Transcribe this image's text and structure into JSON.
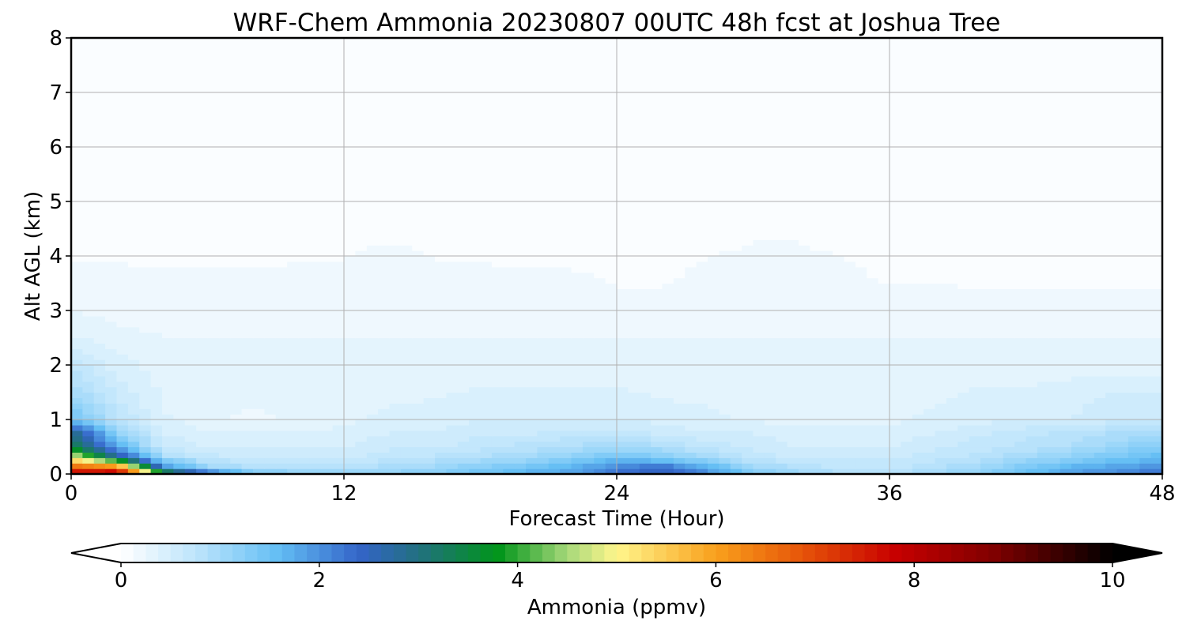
{
  "chart_data": {
    "type": "heatmap",
    "title": "WRF-Chem Ammonia  20230807 00UTC 48h fcst at Joshua Tree",
    "xlabel": "Forecast Time (Hour)",
    "ylabel": "Alt AGL (km)",
    "xlim": [
      0,
      48
    ],
    "ylim": [
      0,
      8
    ],
    "xticks": [
      "0",
      "12",
      "24",
      "36",
      "48"
    ],
    "yticks": [
      "0",
      "1",
      "2",
      "3",
      "4",
      "5",
      "6",
      "7",
      "8"
    ],
    "grid": true,
    "colorbar": {
      "label": "Ammonia  (ppmv)",
      "range": [
        0,
        10
      ],
      "ticks": [
        "0",
        "2",
        "4",
        "6",
        "8",
        "10"
      ],
      "extend": "both",
      "orientation": "horizontal",
      "placement": "bottom"
    },
    "hours": [
      0,
      2,
      4,
      6,
      8,
      10,
      12,
      14,
      16,
      18,
      20,
      22,
      24,
      26,
      28,
      30,
      32,
      34,
      36,
      38,
      40,
      42,
      44,
      46,
      48
    ],
    "levels_km": [
      0,
      0.15,
      0.3,
      0.5,
      0.75,
      1.0,
      1.5,
      2.0,
      2.5,
      3.0,
      3.5,
      4.0,
      4.5,
      5.0,
      6.0,
      8.0
    ],
    "values_ppmv": [
      [
        8.0,
        8.5,
        4.0,
        2.5,
        1.5,
        1.2,
        1.2,
        1.2,
        1.3,
        1.5,
        1.7,
        1.9,
        2.4,
        2.6,
        2.1,
        1.4,
        1.1,
        0.9,
        0.9,
        1.0,
        1.2,
        1.6,
        1.9,
        2.1,
        2.4
      ],
      [
        6.5,
        6.0,
        2.0,
        1.0,
        0.8,
        0.8,
        0.8,
        0.9,
        1.0,
        1.2,
        1.4,
        1.6,
        2.0,
        2.2,
        1.6,
        1.0,
        0.8,
        0.7,
        0.7,
        0.8,
        1.0,
        1.3,
        1.6,
        1.8,
        2.0
      ],
      [
        5.0,
        3.0,
        1.0,
        0.7,
        0.6,
        0.6,
        0.6,
        0.7,
        0.8,
        0.9,
        1.0,
        1.2,
        1.5,
        1.3,
        1.0,
        0.7,
        0.6,
        0.6,
        0.6,
        0.7,
        0.8,
        1.0,
        1.2,
        1.4,
        1.6
      ],
      [
        3.5,
        1.8,
        0.6,
        0.5,
        0.5,
        0.5,
        0.5,
        0.6,
        0.6,
        0.7,
        0.8,
        0.9,
        1.0,
        0.9,
        0.7,
        0.6,
        0.5,
        0.5,
        0.5,
        0.6,
        0.7,
        0.8,
        0.9,
        1.1,
        1.3
      ],
      [
        3.0,
        1.2,
        0.5,
        0.4,
        0.4,
        0.4,
        0.4,
        0.5,
        0.5,
        0.6,
        0.6,
        0.7,
        0.7,
        0.6,
        0.5,
        0.5,
        0.4,
        0.4,
        0.4,
        0.5,
        0.6,
        0.7,
        0.8,
        0.9,
        1.0
      ],
      [
        1.5,
        0.8,
        0.4,
        0.3,
        0.2,
        0.3,
        0.35,
        0.4,
        0.45,
        0.5,
        0.5,
        0.5,
        0.5,
        0.45,
        0.4,
        0.35,
        0.35,
        0.35,
        0.35,
        0.4,
        0.45,
        0.5,
        0.5,
        0.6,
        0.6
      ],
      [
        1.0,
        0.6,
        0.35,
        0.3,
        0.3,
        0.3,
        0.35,
        0.35,
        0.35,
        0.4,
        0.4,
        0.4,
        0.4,
        0.35,
        0.35,
        0.3,
        0.3,
        0.3,
        0.35,
        0.35,
        0.4,
        0.4,
        0.45,
        0.5,
        0.5
      ],
      [
        0.7,
        0.45,
        0.3,
        0.3,
        0.3,
        0.3,
        0.3,
        0.3,
        0.3,
        0.3,
        0.3,
        0.3,
        0.3,
        0.3,
        0.3,
        0.3,
        0.3,
        0.3,
        0.3,
        0.3,
        0.3,
        0.3,
        0.3,
        0.3,
        0.3
      ],
      [
        0.4,
        0.3,
        0.25,
        0.25,
        0.25,
        0.25,
        0.25,
        0.25,
        0.25,
        0.25,
        0.25,
        0.25,
        0.25,
        0.25,
        0.25,
        0.25,
        0.25,
        0.25,
        0.25,
        0.25,
        0.25,
        0.25,
        0.25,
        0.25,
        0.25
      ],
      [
        0.25,
        0.2,
        0.2,
        0.2,
        0.2,
        0.2,
        0.2,
        0.2,
        0.2,
        0.2,
        0.2,
        0.2,
        0.15,
        0.15,
        0.2,
        0.2,
        0.2,
        0.2,
        0.2,
        0.2,
        0.15,
        0.15,
        0.15,
        0.15,
        0.15
      ],
      [
        0.15,
        0.15,
        0.15,
        0.15,
        0.15,
        0.15,
        0.15,
        0.15,
        0.15,
        0.15,
        0.15,
        0.15,
        0.12,
        0.12,
        0.15,
        0.15,
        0.15,
        0.15,
        0.12,
        0.12,
        0.12,
        0.12,
        0.12,
        0.12,
        0.12
      ],
      [
        0.12,
        0.12,
        0.1,
        0.1,
        0.1,
        0.12,
        0.12,
        0.15,
        0.12,
        0.12,
        0.1,
        0.1,
        0.1,
        0.1,
        0.12,
        0.15,
        0.15,
        0.12,
        0.1,
        0.1,
        0.1,
        0.1,
        0.1,
        0.1,
        0.1
      ],
      [
        0.08,
        0.08,
        0.08,
        0.08,
        0.08,
        0.08,
        0.1,
        0.1,
        0.1,
        0.08,
        0.08,
        0.08,
        0.08,
        0.08,
        0.08,
        0.1,
        0.1,
        0.08,
        0.08,
        0.07,
        0.07,
        0.07,
        0.07,
        0.07,
        0.07
      ],
      [
        0.06,
        0.06,
        0.06,
        0.06,
        0.06,
        0.06,
        0.06,
        0.06,
        0.06,
        0.06,
        0.06,
        0.06,
        0.06,
        0.06,
        0.06,
        0.07,
        0.07,
        0.06,
        0.05,
        0.05,
        0.05,
        0.05,
        0.05,
        0.05,
        0.05
      ],
      [
        0.04,
        0.04,
        0.04,
        0.04,
        0.04,
        0.04,
        0.04,
        0.04,
        0.04,
        0.04,
        0.04,
        0.04,
        0.04,
        0.04,
        0.04,
        0.04,
        0.04,
        0.04,
        0.04,
        0.04,
        0.04,
        0.04,
        0.04,
        0.04,
        0.04
      ],
      [
        0.03,
        0.03,
        0.03,
        0.03,
        0.03,
        0.03,
        0.03,
        0.03,
        0.03,
        0.03,
        0.03,
        0.03,
        0.03,
        0.03,
        0.03,
        0.03,
        0.03,
        0.03,
        0.03,
        0.03,
        0.03,
        0.03,
        0.03,
        0.03,
        0.03
      ]
    ]
  },
  "colors": {
    "colormap_stops": [
      [
        0.0,
        "#ffffff"
      ],
      [
        0.08,
        "#b9e3fb"
      ],
      [
        0.16,
        "#62bdf4"
      ],
      [
        0.24,
        "#3464c8"
      ],
      [
        0.3,
        "#227080"
      ],
      [
        0.38,
        "#00951a"
      ],
      [
        0.45,
        "#a6d87a"
      ],
      [
        0.5,
        "#fff68c"
      ],
      [
        0.6,
        "#f9a01c"
      ],
      [
        0.68,
        "#e85b0a"
      ],
      [
        0.78,
        "#c80000"
      ],
      [
        0.88,
        "#800000"
      ],
      [
        1.0,
        "#000000"
      ]
    ],
    "under": "#ffffff",
    "over": "#000000",
    "grid": "#b0b0b0"
  }
}
